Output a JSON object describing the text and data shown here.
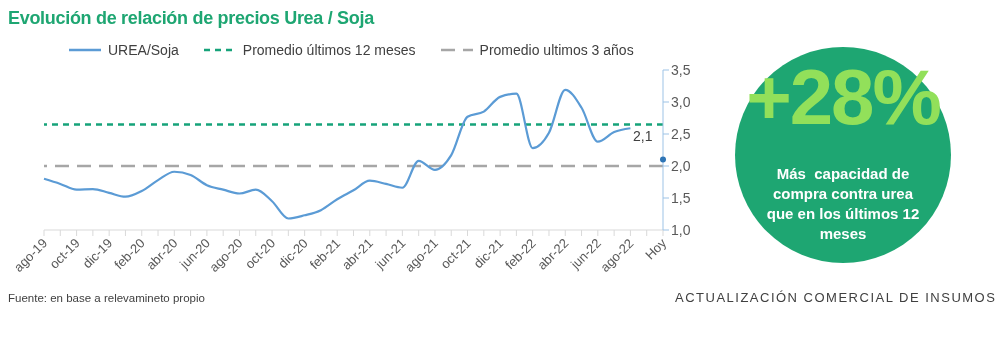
{
  "chart_data": {
    "type": "line",
    "title": "Evolución de relación de precios Urea / Soja",
    "categories": [
      "ago-19",
      null,
      "oct-19",
      null,
      "dic-19",
      null,
      "feb-20",
      null,
      "abr-20",
      null,
      "jun-20",
      null,
      "ago-20",
      null,
      "oct-20",
      null,
      "dic-20",
      null,
      "feb-21",
      null,
      "abr-21",
      null,
      "jun-21",
      null,
      "ago-21",
      null,
      "oct-21",
      null,
      "dic-21",
      null,
      "feb-22",
      null,
      "abr-22",
      null,
      "jun-22",
      null,
      "ago-22",
      null,
      "Hoy"
    ],
    "series": [
      {
        "name": "UREA/Soja",
        "color": "#5b9bd5",
        "marker": "none",
        "values": [
          1.8,
          1.72,
          1.63,
          1.64,
          1.58,
          1.52,
          1.61,
          1.78,
          1.91,
          1.86,
          1.7,
          1.63,
          1.57,
          1.63,
          1.45,
          1.18,
          1.23,
          1.31,
          1.48,
          1.62,
          1.77,
          1.72,
          1.66,
          2.08,
          1.94,
          2.17,
          2.77,
          2.85,
          3.08,
          3.13,
          2.28,
          2.52,
          3.19,
          2.91,
          2.38,
          2.53,
          2.59,
          null,
          null
        ]
      },
      {
        "type": "scatter",
        "color": "#2e75b6",
        "marker": "circle",
        "values": [
          null,
          null,
          null,
          null,
          null,
          null,
          null,
          null,
          null,
          null,
          null,
          null,
          null,
          null,
          null,
          null,
          null,
          null,
          null,
          null,
          null,
          null,
          null,
          null,
          null,
          null,
          null,
          null,
          null,
          null,
          null,
          null,
          null,
          null,
          null,
          null,
          null,
          null,
          2.1
        ],
        "value_labels": [
          null,
          null,
          null,
          null,
          null,
          null,
          null,
          null,
          null,
          null,
          null,
          null,
          null,
          null,
          null,
          null,
          null,
          null,
          null,
          null,
          null,
          null,
          null,
          null,
          null,
          null,
          null,
          null,
          null,
          null,
          null,
          null,
          null,
          null,
          null,
          null,
          null,
          null,
          "2,1"
        ]
      }
    ],
    "ylim": [
      1,
      3.5
    ],
    "yticks": [
      {
        "value": 1,
        "label": "1,0"
      },
      {
        "value": 1.5,
        "label": "1,5"
      },
      {
        "value": 2,
        "label": "2,0"
      },
      {
        "value": 2.5,
        "label": "2,5"
      },
      {
        "value": 3,
        "label": "3,0"
      },
      {
        "value": 3.5,
        "label": "3,5"
      }
    ],
    "ref_lines": [
      {
        "axis": "y",
        "value": 2.65,
        "label": "Promedio últimos 12 meses",
        "color": "#16a37a",
        "line_style": "dashed"
      },
      {
        "axis": "y",
        "value": 2.0,
        "label": "Promedio ultimos 3 años",
        "color": "#a6a6a6",
        "line_style": "dashed"
      }
    ],
    "grid": false,
    "legend": "top",
    "annotations": [
      "Fuente: en base a relevamineto propio",
      "ACTUALIZACIÓN COMERCIAL DE INSUMOS",
      "+28%",
      "Más  capacidad de compra contra urea que en los últimos 12 meses"
    ]
  }
}
